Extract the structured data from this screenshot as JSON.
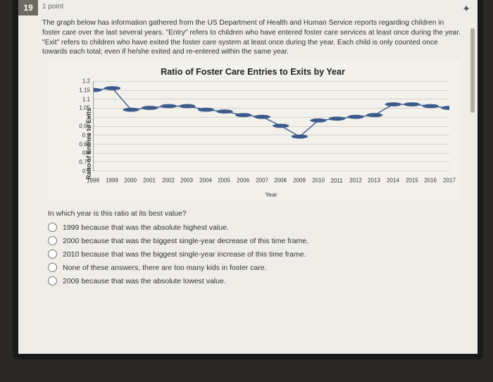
{
  "question": {
    "number": "19",
    "points": "1 point",
    "intro": "The graph below has information gathered from the US Department of Health and Human Service reports regarding children in foster care over the last several years. \"Entry\" refers to children who have entered foster care services at least once during the year. \"Exit\" refers to children who have exited the foster care system at least once during the year. Each child is only counted once towards each total; even if he/she exited and re-entered within the same year.",
    "stem": "In which year is this ratio at its best value?",
    "options": [
      "1999 because that was the absolute highest value.",
      "2000 because that was the biggest single-year decrease of this time frame.",
      "2010 because that was the biggest single-year increase of this time frame.",
      "None of these answers, there are too many kids in foster care.",
      "2009 because that was the absolute lowest value."
    ]
  },
  "chart": {
    "type": "line",
    "title": "Ratio of Foster Care Entries to Exits by Year",
    "x_axis_label": "Year",
    "y_axis_label": "Ratio of Entries to Exits",
    "years": [
      "1998",
      "1999",
      "2000",
      "2001",
      "2002",
      "2003",
      "2004",
      "2005",
      "2006",
      "2007",
      "2008",
      "2009",
      "2010",
      "2011",
      "2012",
      "2013",
      "2014",
      "2015",
      "2016",
      "2017"
    ],
    "values": [
      1.15,
      1.16,
      1.04,
      1.05,
      1.06,
      1.06,
      1.04,
      1.03,
      1.01,
      1.0,
      0.95,
      0.89,
      0.98,
      0.99,
      1.0,
      1.01,
      1.07,
      1.07,
      1.06,
      1.05
    ],
    "ylim": [
      0.7,
      1.2
    ],
    "yticks": [
      0.7,
      0.75,
      0.8,
      0.85,
      0.9,
      0.95,
      1,
      1.05,
      1.1,
      1.15,
      1.2
    ],
    "line_color": "#3b5b8c",
    "marker_color": "#3b5b8c",
    "marker_radius": 2.3,
    "line_width": 1.4,
    "grid_color": "#d6d3cc",
    "background_color": "#f3f1ec"
  },
  "ui": {
    "star_icon": "✦"
  }
}
